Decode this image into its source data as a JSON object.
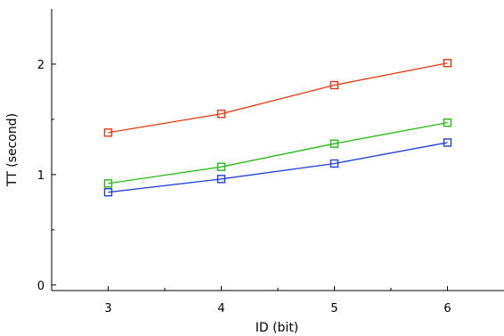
{
  "chart_data": {
    "type": "line",
    "xlabel": "ID (bit)",
    "ylabel": "TT (second)",
    "x": [
      3,
      4,
      5,
      6
    ],
    "xlim": [
      2.5,
      6.5
    ],
    "ylim": [
      -0.05,
      2.5
    ],
    "xticks": [
      3,
      4,
      5,
      6
    ],
    "xticks_minor": [
      3.5,
      4.5,
      5.5
    ],
    "yticks": [
      0,
      1,
      2
    ],
    "yticks_minor": [
      0.5,
      1.5
    ],
    "xtick_labels": [
      "3",
      "4",
      "5",
      "6"
    ],
    "ytick_labels": [
      "0",
      "1",
      "2"
    ],
    "grid": false,
    "marker": "square",
    "series": [
      {
        "color": "#e8380f",
        "values": [
          1.38,
          1.55,
          1.81,
          2.01
        ]
      },
      {
        "color": "#22bb11",
        "values": [
          0.92,
          1.07,
          1.28,
          1.47
        ]
      },
      {
        "color": "#1f3fe0",
        "values": [
          0.84,
          0.96,
          1.1,
          1.29
        ]
      }
    ]
  }
}
